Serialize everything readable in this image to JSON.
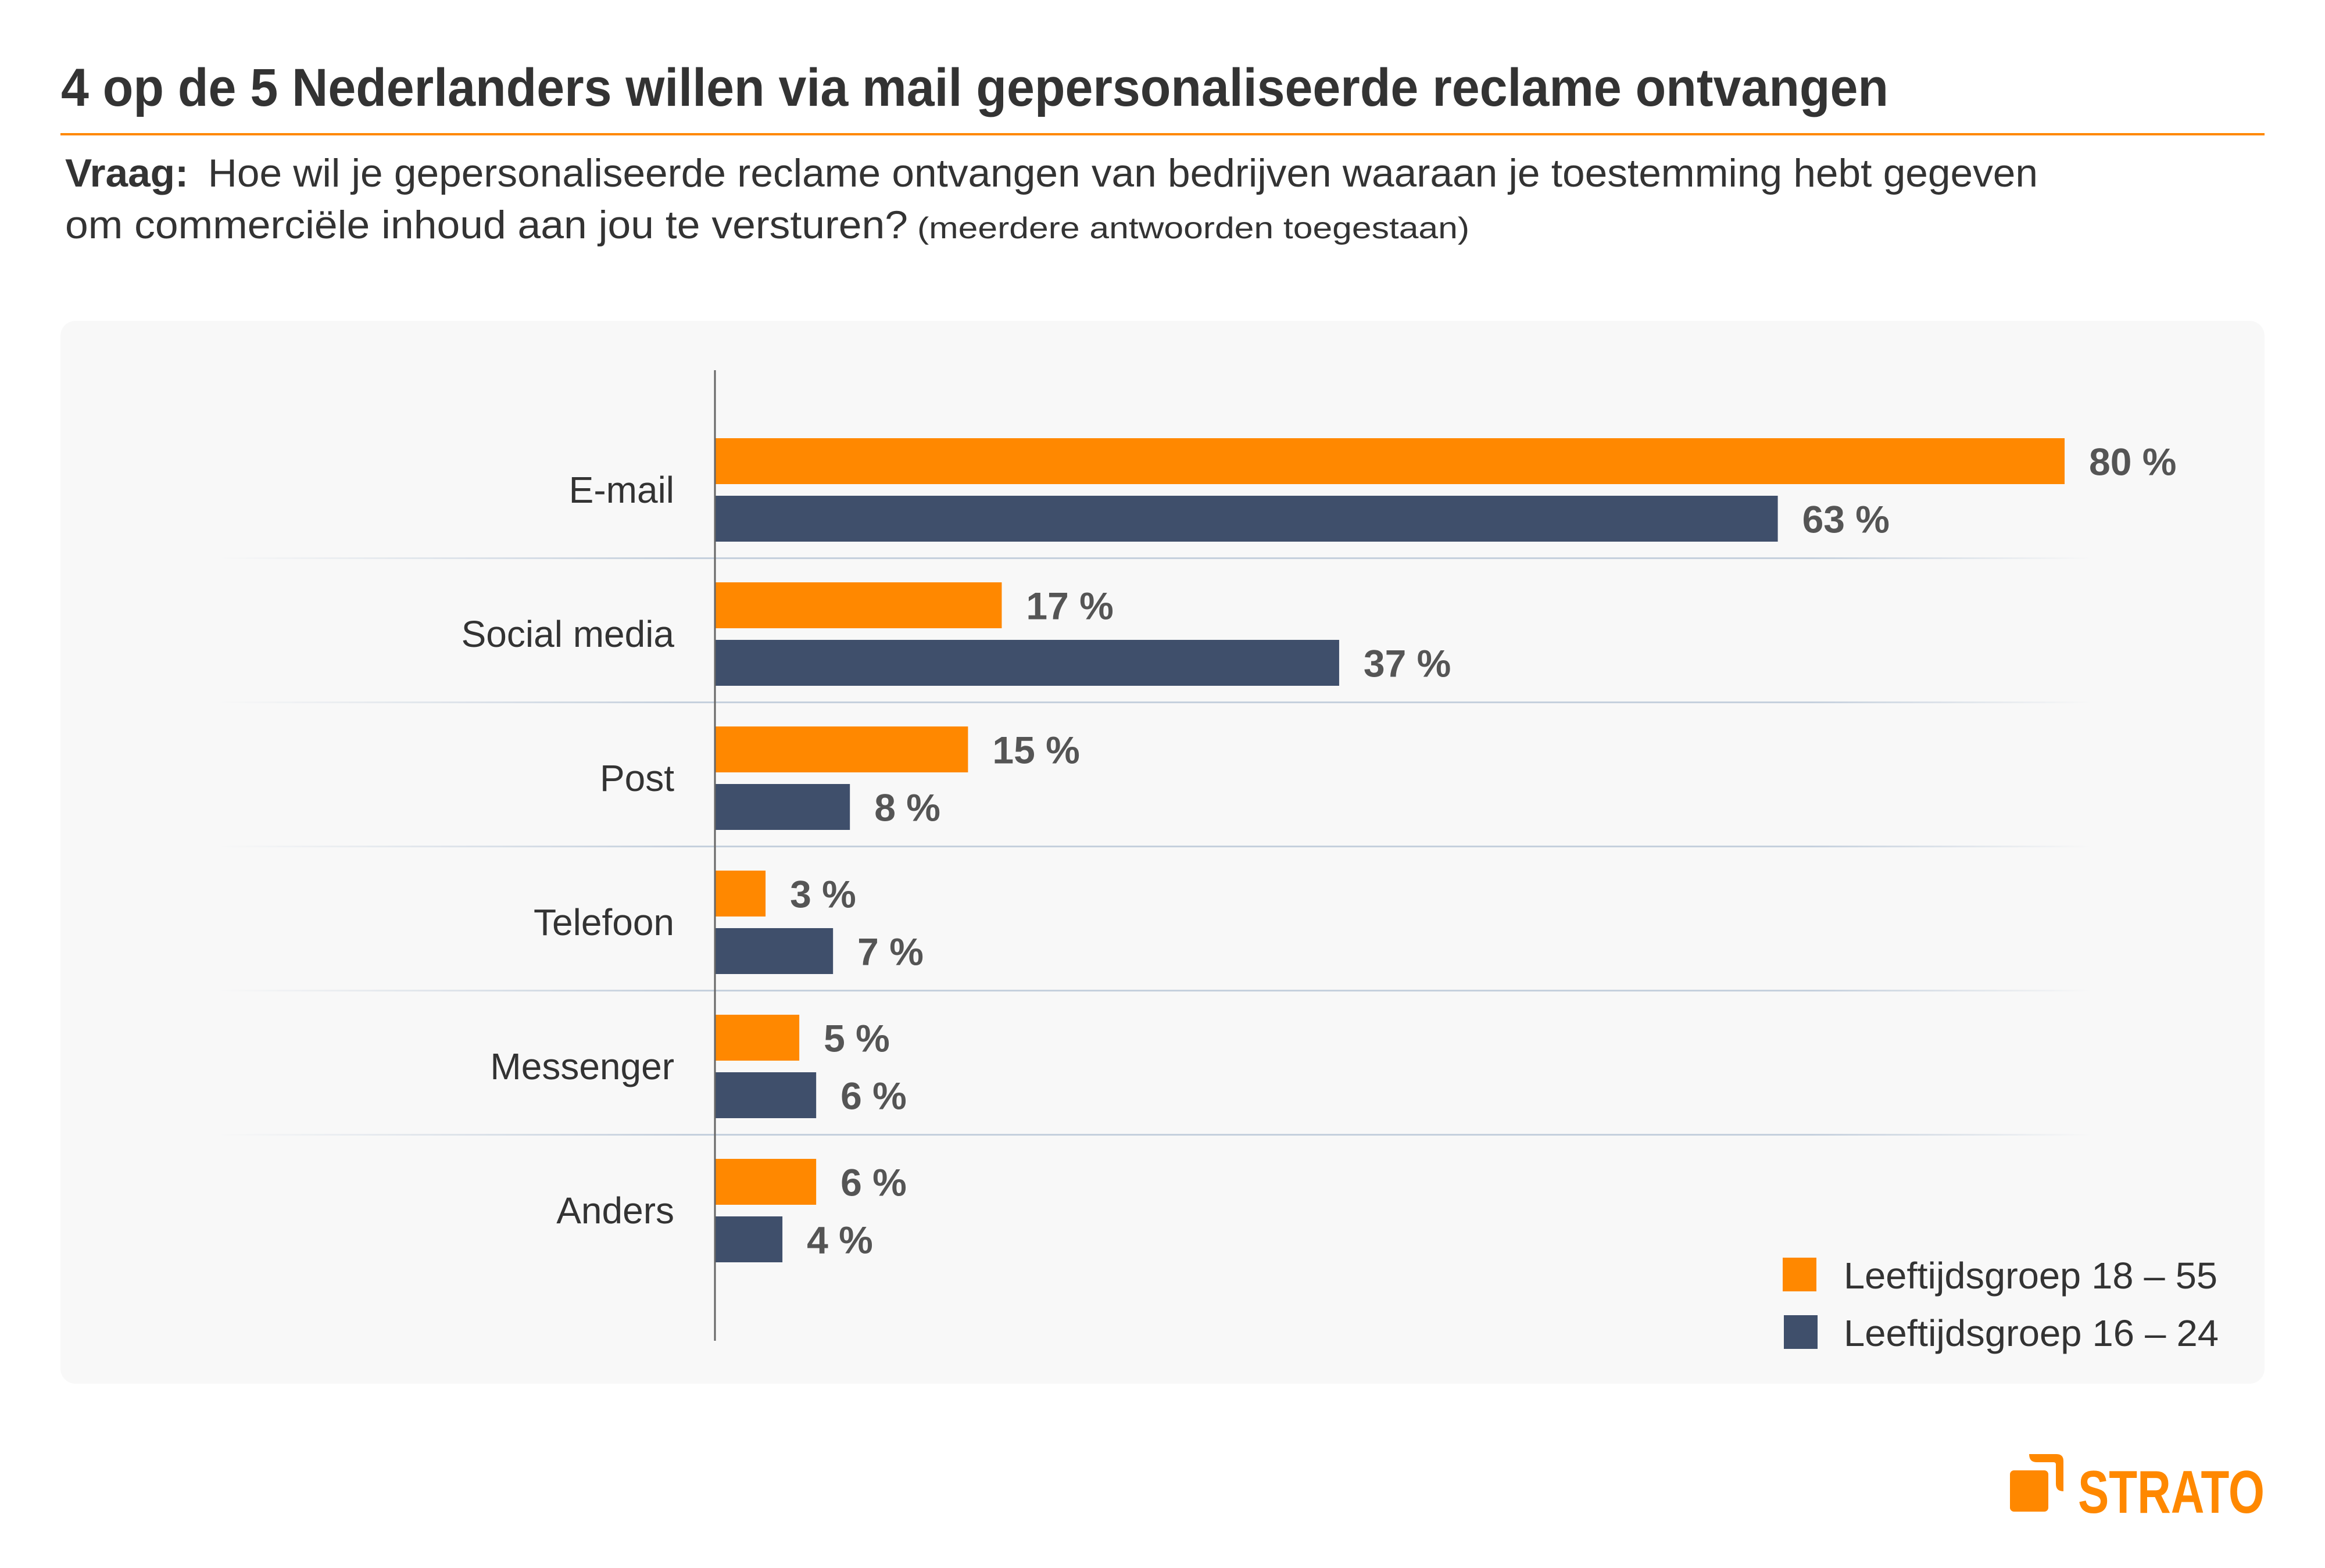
{
  "header": {
    "title": "4 op de 5 Nederlanders willen via mail gepersonaliseerde reclame ontvangen",
    "question_label": "Vraag:",
    "question_line1": "Hoe wil je gepersonaliseerde reclame ontvangen van bedrijven waaraan je toestemming hebt gegeven",
    "question_line2": "om commerciële inhoud aan jou te versturen?",
    "question_note": "(meerdere antwoorden toegestaan)"
  },
  "colors": {
    "accent": "#FF8800",
    "series_1": "#FF8800",
    "series_2": "#3F4F6B",
    "panel_background": "#F8F8F8",
    "text": "#333333",
    "value_label": "#555555",
    "separator": "#C5D0DD"
  },
  "chart_data": {
    "type": "bar",
    "orientation": "horizontal",
    "title": "4 op de 5 Nederlanders willen via mail gepersonaliseerde reclame ontvangen",
    "subtitle": "Vraag: Hoe wil je gepersonaliseerde reclame ontvangen van bedrijven waaraan je toestemming hebt gegeven om commerciële inhoud aan jou te versturen? (meerdere antwoorden toegestaan)",
    "xlabel": "",
    "ylabel": "",
    "unit": "%",
    "xlim": [
      0,
      80
    ],
    "grid": false,
    "legend_position": "bottom-right",
    "categories": [
      "E-mail",
      "Social media",
      "Post",
      "Telefoon",
      "Messenger",
      "Anders"
    ],
    "series": [
      {
        "name": "Leeftijdsgroep 18 – 55",
        "color": "#FF8800",
        "values": [
          80,
          17,
          15,
          3,
          5,
          6
        ],
        "labels": [
          "80 %",
          "17 %",
          "15 %",
          "3 %",
          "5 %",
          "6 %"
        ]
      },
      {
        "name": "Leeftijdsgroep 16 – 24",
        "color": "#3F4F6B",
        "values": [
          63,
          37,
          8,
          7,
          6,
          4
        ],
        "labels": [
          "63 %",
          "37 %",
          "8 %",
          "7 %",
          "6 %",
          "4 %"
        ]
      }
    ]
  },
  "legend": {
    "items": [
      {
        "label": "Leeftijdsgroep 18 – 55",
        "color": "#FF8800"
      },
      {
        "label": "Leeftijdsgroep 16 – 24",
        "color": "#3F4F6B"
      }
    ]
  },
  "branding": {
    "logo_text": "STRATO",
    "logo_icon": "strato-square-bracket-icon"
  }
}
